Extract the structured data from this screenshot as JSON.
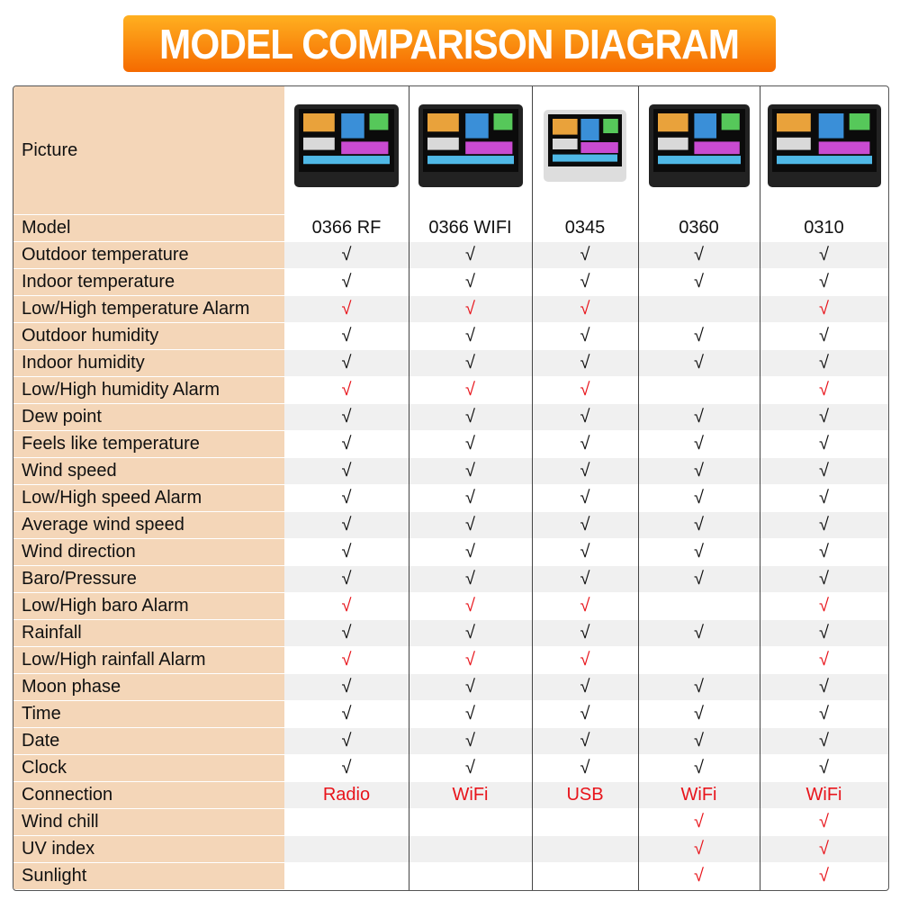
{
  "header": {
    "title": "MODEL COMPARISON DIAGRAM"
  },
  "table": {
    "picture_label": "Picture",
    "model_label": "Model",
    "models": [
      "0366 RF",
      "0366 WIFI",
      "0345",
      "0360",
      "0310"
    ],
    "rows": [
      {
        "feature": "Outdoor temperature",
        "cells": [
          "√",
          "√",
          "√",
          "√",
          "√"
        ]
      },
      {
        "feature": "Indoor temperature",
        "cells": [
          "√",
          "√",
          "√",
          "√",
          "√"
        ]
      },
      {
        "feature": "Low/High temperature Alarm",
        "color": "#e8141b",
        "cells": [
          "√",
          "√",
          "√",
          null,
          "√"
        ]
      },
      {
        "feature": "Outdoor humidity",
        "cells": [
          "√",
          "√",
          "√",
          "√",
          "√"
        ]
      },
      {
        "feature": "Indoor humidity",
        "cells": [
          "√",
          "√",
          "√",
          "√",
          "√"
        ]
      },
      {
        "feature": "Low/High humidity Alarm",
        "color": "#e8141b",
        "cells": [
          "√",
          "√",
          "√",
          null,
          "√"
        ]
      },
      {
        "feature": "Dew point",
        "cells": [
          "√",
          "√",
          "√",
          "√",
          "√"
        ]
      },
      {
        "feature": "Feels like temperature",
        "cells": [
          "√",
          "√",
          "√",
          "√",
          "√"
        ]
      },
      {
        "feature": "Wind speed",
        "cells": [
          "√",
          "√",
          "√",
          "√",
          "√"
        ]
      },
      {
        "feature": "Low/High speed Alarm",
        "cells": [
          "√",
          "√",
          "√",
          "√",
          "√"
        ]
      },
      {
        "feature": "Average wind speed",
        "cells": [
          "√",
          "√",
          "√",
          "√",
          "√"
        ]
      },
      {
        "feature": "Wind direction",
        "cells": [
          "√",
          "√",
          "√",
          "√",
          "√"
        ]
      },
      {
        "feature": "Baro/Pressure",
        "cells": [
          "√",
          "√",
          "√",
          "√",
          "√"
        ]
      },
      {
        "feature": "Low/High baro Alarm",
        "color": "#e8141b",
        "cells": [
          "√",
          "√",
          "√",
          null,
          "√"
        ]
      },
      {
        "feature": "Rainfall",
        "cells": [
          "√",
          "√",
          "√",
          "√",
          "√"
        ]
      },
      {
        "feature": "Low/High rainfall Alarm",
        "color": "#e8141b",
        "cells": [
          "√",
          "√",
          "√",
          null,
          "√"
        ]
      },
      {
        "feature": "Moon phase",
        "cells": [
          "√",
          "√",
          "√",
          "√",
          "√"
        ]
      },
      {
        "feature": "Time",
        "cells": [
          "√",
          "√",
          "√",
          "√",
          "√"
        ]
      },
      {
        "feature": "Date",
        "cells": [
          "√",
          "√",
          "√",
          "√",
          "√"
        ]
      },
      {
        "feature": "Clock",
        "cells": [
          "√",
          "√",
          "√",
          "√",
          "√"
        ]
      },
      {
        "feature": "Connection",
        "color": "#e8141b",
        "cells": [
          "Radio",
          "WiFi",
          "USB",
          "WiFi",
          "WiFi"
        ]
      },
      {
        "feature": "Wind chill",
        "color": "#e8141b",
        "cells": [
          null,
          null,
          null,
          "√",
          "√"
        ]
      },
      {
        "feature": "UV index",
        "color": "#e8141b",
        "cells": [
          null,
          null,
          null,
          "√",
          "√"
        ]
      },
      {
        "feature": "Sunlight",
        "color": "#e8141b",
        "cells": [
          null,
          null,
          null,
          "√",
          "√"
        ]
      }
    ]
  }
}
